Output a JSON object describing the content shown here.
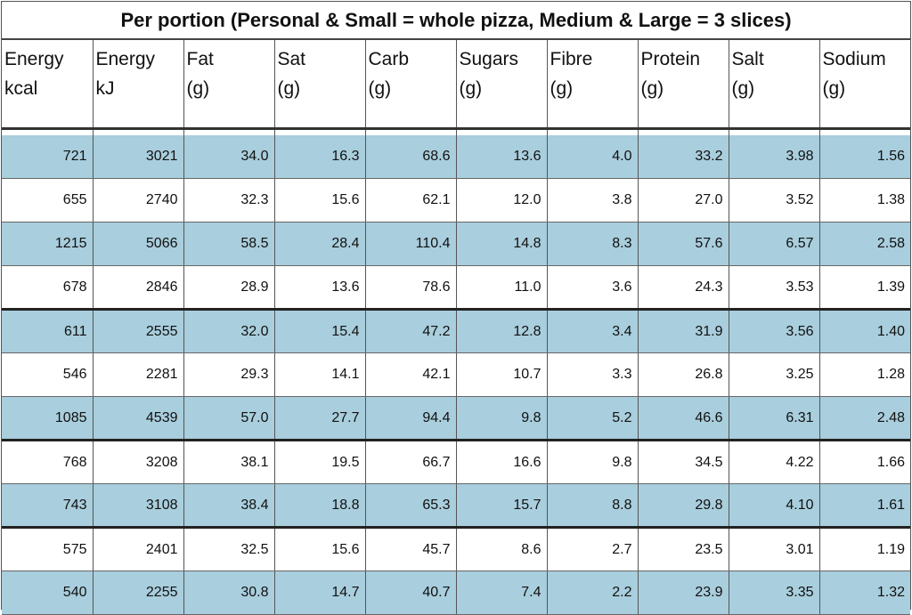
{
  "title": "Per portion (Personal & Small = whole pizza, Medium & Large = 3 slices)",
  "headers": [
    [
      "Energy",
      "kcal"
    ],
    [
      "Energy",
      "kJ"
    ],
    [
      "Fat",
      "(g)"
    ],
    [
      "Sat",
      "(g)"
    ],
    [
      "Carb",
      "(g)"
    ],
    [
      "Sugars",
      "(g)"
    ],
    [
      "Fibre",
      "(g)"
    ],
    [
      "Protein",
      "(g)"
    ],
    [
      "Salt",
      "(g)"
    ],
    [
      "Sodium",
      "(g)"
    ]
  ],
  "rows": [
    [
      "721",
      "3021",
      "34.0",
      "16.3",
      "68.6",
      "13.6",
      "4.0",
      "33.2",
      "3.98",
      "1.56"
    ],
    [
      "655",
      "2740",
      "32.3",
      "15.6",
      "62.1",
      "12.0",
      "3.8",
      "27.0",
      "3.52",
      "1.38"
    ],
    [
      "1215",
      "5066",
      "58.5",
      "28.4",
      "110.4",
      "14.8",
      "8.3",
      "57.6",
      "6.57",
      "2.58"
    ],
    [
      "678",
      "2846",
      "28.9",
      "13.6",
      "78.6",
      "11.0",
      "3.6",
      "24.3",
      "3.53",
      "1.39"
    ],
    [
      "611",
      "2555",
      "32.0",
      "15.4",
      "47.2",
      "12.8",
      "3.4",
      "31.9",
      "3.56",
      "1.40"
    ],
    [
      "546",
      "2281",
      "29.3",
      "14.1",
      "42.1",
      "10.7",
      "3.3",
      "26.8",
      "3.25",
      "1.28"
    ],
    [
      "1085",
      "4539",
      "57.0",
      "27.7",
      "94.4",
      "9.8",
      "5.2",
      "46.6",
      "6.31",
      "2.48"
    ],
    [
      "768",
      "3208",
      "38.1",
      "19.5",
      "66.7",
      "16.6",
      "9.8",
      "34.5",
      "4.22",
      "1.66"
    ],
    [
      "743",
      "3108",
      "38.4",
      "18.8",
      "65.3",
      "15.7",
      "8.8",
      "29.8",
      "4.10",
      "1.61"
    ],
    [
      "575",
      "2401",
      "32.5",
      "15.6",
      "45.7",
      "8.6",
      "2.7",
      "23.5",
      "3.01",
      "1.19"
    ],
    [
      "540",
      "2255",
      "30.8",
      "14.7",
      "40.7",
      "7.4",
      "2.2",
      "23.9",
      "3.35",
      "1.32"
    ]
  ],
  "colors": {
    "band": "#a9cedd",
    "plain": "#ffffff"
  }
}
